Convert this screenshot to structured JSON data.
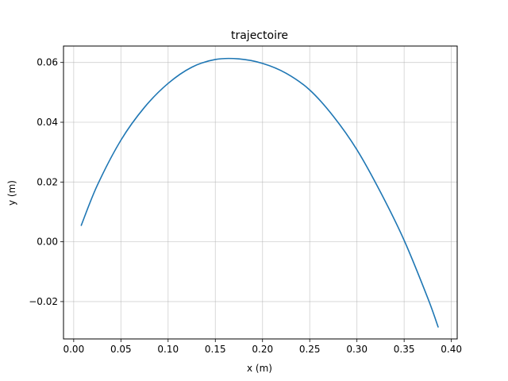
{
  "chart_data": {
    "type": "line",
    "title": "trajectoire",
    "xlabel": "x (m)",
    "ylabel": "y (m)",
    "xlim": [
      -0.0108,
      0.4062
    ],
    "ylim": [
      -0.0325,
      0.0655
    ],
    "grid": true,
    "line_color": "#1f77b4",
    "grid_color": "#b0b0b0",
    "xticks": [
      0.0,
      0.05,
      0.1,
      0.15,
      0.2,
      0.25,
      0.3,
      0.35,
      0.4
    ],
    "xtick_labels": [
      "0.00",
      "0.05",
      "0.10",
      "0.15",
      "0.20",
      "0.25",
      "0.30",
      "0.35",
      "0.40"
    ],
    "yticks": [
      -0.02,
      0.0,
      0.02,
      0.04,
      0.06
    ],
    "ytick_labels": [
      "−0.02",
      "0.00",
      "0.02",
      "0.04",
      "0.06"
    ],
    "series": [
      {
        "x": [
          0.008,
          0.025,
          0.05,
          0.075,
          0.1,
          0.125,
          0.15,
          0.175,
          0.2,
          0.225,
          0.25,
          0.275,
          0.3,
          0.325,
          0.35,
          0.375,
          0.386
        ],
        "y": [
          0.0055,
          0.0189,
          0.034,
          0.045,
          0.053,
          0.0584,
          0.061,
          0.0612,
          0.0597,
          0.0564,
          0.0508,
          0.042,
          0.0308,
          0.0166,
          0.0005,
          -0.0188,
          -0.0285
        ]
      }
    ]
  }
}
